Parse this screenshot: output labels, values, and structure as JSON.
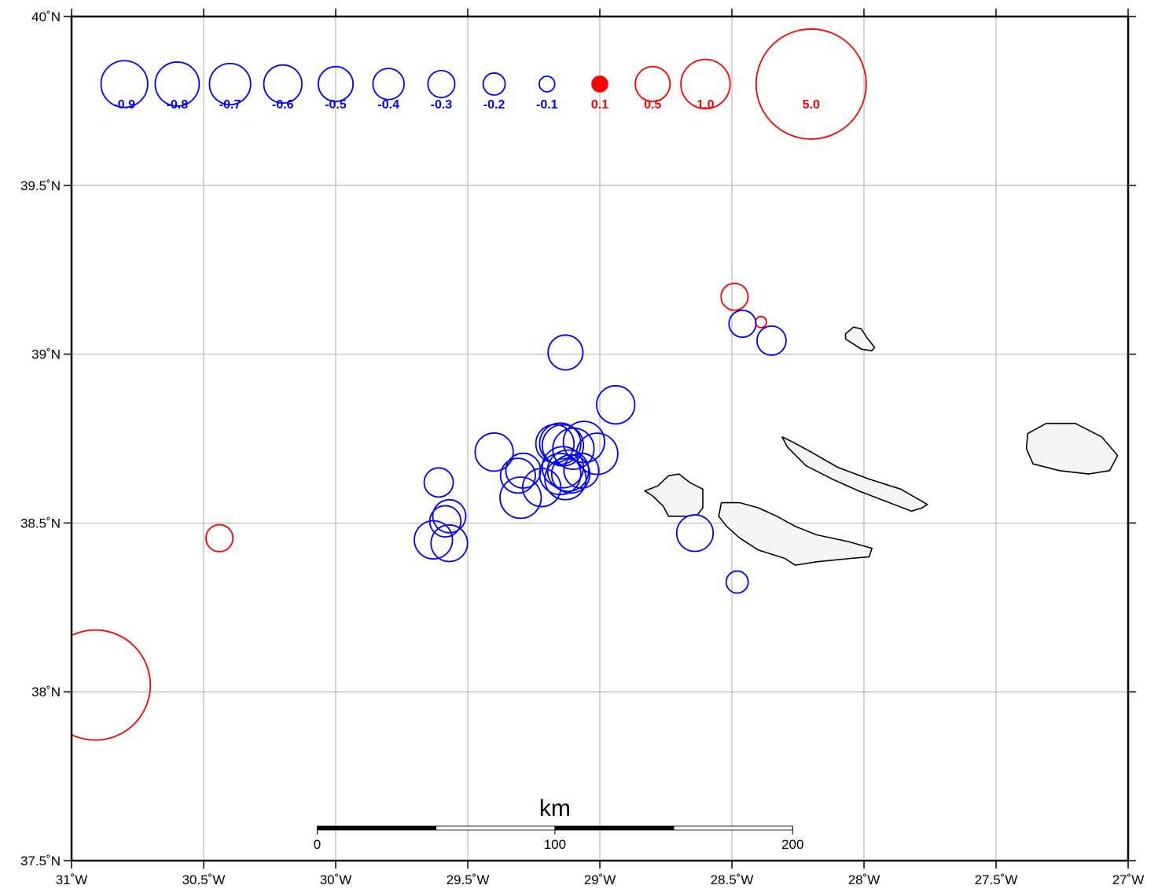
{
  "colors": {
    "negative": "#0000ff",
    "positive": "#ff0000",
    "land_fill": "#f5f5f5",
    "land_stroke": "#000000",
    "grid": "#999999"
  },
  "map": {
    "lon_range": [
      -31.0,
      -27.0
    ],
    "lat_range": [
      37.5,
      40.0
    ],
    "x_ticks": [
      {
        "value": -31.0,
        "label": "31˚W"
      },
      {
        "value": -30.5,
        "label": "30.5˚W"
      },
      {
        "value": -30.0,
        "label": "30˚W"
      },
      {
        "value": -29.5,
        "label": "29.5˚W"
      },
      {
        "value": -29.0,
        "label": "29˚W"
      },
      {
        "value": -28.5,
        "label": "28.5˚W"
      },
      {
        "value": -28.0,
        "label": "28˚W"
      },
      {
        "value": -27.5,
        "label": "27.5˚W"
      },
      {
        "value": -27.0,
        "label": "27˚W"
      }
    ],
    "y_ticks": [
      {
        "value": 37.5,
        "label": "37.5˚N"
      },
      {
        "value": 38.0,
        "label": "38˚N"
      },
      {
        "value": 38.5,
        "label": "38.5˚N"
      },
      {
        "value": 39.0,
        "label": "39˚N"
      },
      {
        "value": 39.5,
        "label": "39.5˚N"
      },
      {
        "value": 40.0,
        "label": "40˚N"
      }
    ],
    "grid": true
  },
  "legend": {
    "lat": 39.8,
    "items": [
      {
        "label": "-0.9",
        "lon": -30.8,
        "value": -0.9
      },
      {
        "label": "-0.8",
        "lon": -30.6,
        "value": -0.8
      },
      {
        "label": "-0.7",
        "lon": -30.4,
        "value": -0.7
      },
      {
        "label": "-0.6",
        "lon": -30.2,
        "value": -0.6
      },
      {
        "label": "-0.5",
        "lon": -30.0,
        "value": -0.5
      },
      {
        "label": "-0.4",
        "lon": -29.8,
        "value": -0.4
      },
      {
        "label": "-0.3",
        "lon": -29.6,
        "value": -0.3
      },
      {
        "label": "-0.2",
        "lon": -29.4,
        "value": -0.2
      },
      {
        "label": "-0.1",
        "lon": -29.2,
        "value": -0.1
      },
      {
        "label": "0.1",
        "lon": -29.0,
        "value": 0.1
      },
      {
        "label": "0.5",
        "lon": -28.8,
        "value": 0.5
      },
      {
        "label": "1.0",
        "lon": -28.6,
        "value": 1.0
      },
      {
        "label": "5.0",
        "lon": -28.2,
        "value": 5.0
      }
    ]
  },
  "events": [
    {
      "lon": -30.91,
      "lat": 38.02,
      "value": 5.0
    },
    {
      "lon": -30.44,
      "lat": 38.455,
      "value": 0.3
    },
    {
      "lon": -28.49,
      "lat": 39.17,
      "value": 0.3
    },
    {
      "lon": -28.39,
      "lat": 39.095,
      "value": 0.05
    },
    {
      "lon": -28.46,
      "lat": 39.09,
      "value": -0.3
    },
    {
      "lon": -28.35,
      "lat": 39.04,
      "value": -0.35
    },
    {
      "lon": -29.13,
      "lat": 39.005,
      "value": -0.5
    },
    {
      "lon": -28.94,
      "lat": 38.85,
      "value": -0.6
    },
    {
      "lon": -29.4,
      "lat": 38.71,
      "value": -0.6
    },
    {
      "lon": -29.17,
      "lat": 38.735,
      "value": -0.6
    },
    {
      "lon": -29.15,
      "lat": 38.735,
      "value": -0.7
    },
    {
      "lon": -29.14,
      "lat": 38.73,
      "value": -0.7
    },
    {
      "lon": -29.1,
      "lat": 38.72,
      "value": -0.7
    },
    {
      "lon": -29.06,
      "lat": 38.74,
      "value": -0.7
    },
    {
      "lon": -29.01,
      "lat": 38.705,
      "value": -0.7
    },
    {
      "lon": -29.14,
      "lat": 38.665,
      "value": -0.7
    },
    {
      "lon": -29.12,
      "lat": 38.655,
      "value": -0.7
    },
    {
      "lon": -29.07,
      "lat": 38.655,
      "value": -0.5
    },
    {
      "lon": -29.15,
      "lat": 38.645,
      "value": -0.7
    },
    {
      "lon": -29.11,
      "lat": 38.645,
      "value": -0.6
    },
    {
      "lon": -29.13,
      "lat": 38.63,
      "value": -0.7
    },
    {
      "lon": -29.22,
      "lat": 38.605,
      "value": -0.6
    },
    {
      "lon": -29.29,
      "lat": 38.655,
      "value": -0.5
    },
    {
      "lon": -29.31,
      "lat": 38.64,
      "value": -0.5
    },
    {
      "lon": -29.3,
      "lat": 38.575,
      "value": -0.7
    },
    {
      "lon": -29.61,
      "lat": 38.62,
      "value": -0.35
    },
    {
      "lon": -29.57,
      "lat": 38.52,
      "value": -0.45
    },
    {
      "lon": -29.585,
      "lat": 38.505,
      "value": -0.4
    },
    {
      "lon": -29.63,
      "lat": 38.45,
      "value": -0.6
    },
    {
      "lon": -29.57,
      "lat": 38.44,
      "value": -0.55
    },
    {
      "lon": -28.64,
      "lat": 38.47,
      "value": -0.55
    },
    {
      "lon": -28.48,
      "lat": 38.325,
      "value": -0.2
    }
  ],
  "islands": [
    {
      "name": "flores-corvo-island",
      "points": [
        [
          -28.07,
          39.06
        ],
        [
          -28.04,
          39.08
        ],
        [
          -28.01,
          39.075
        ],
        [
          -27.99,
          39.05
        ],
        [
          -27.96,
          39.02
        ],
        [
          -27.97,
          39.01
        ],
        [
          -28.01,
          39.015
        ],
        [
          -28.04,
          39.03
        ],
        [
          -28.07,
          39.045
        ]
      ]
    },
    {
      "name": "faial-island",
      "points": [
        [
          -28.83,
          38.595
        ],
        [
          -28.78,
          38.61
        ],
        [
          -28.74,
          38.64
        ],
        [
          -28.7,
          38.645
        ],
        [
          -28.66,
          38.62
        ],
        [
          -28.61,
          38.6
        ],
        [
          -28.61,
          38.545
        ],
        [
          -28.63,
          38.525
        ],
        [
          -28.67,
          38.52
        ],
        [
          -28.74,
          38.52
        ],
        [
          -28.76,
          38.55
        ],
        [
          -28.8,
          38.58
        ]
      ]
    },
    {
      "name": "pico-island",
      "points": [
        [
          -28.54,
          38.56
        ],
        [
          -28.47,
          38.56
        ],
        [
          -28.4,
          38.545
        ],
        [
          -28.33,
          38.52
        ],
        [
          -28.26,
          38.49
        ],
        [
          -28.18,
          38.465
        ],
        [
          -28.06,
          38.445
        ],
        [
          -27.97,
          38.425
        ],
        [
          -27.98,
          38.4
        ],
        [
          -28.05,
          38.395
        ],
        [
          -28.18,
          38.385
        ],
        [
          -28.26,
          38.375
        ],
        [
          -28.3,
          38.395
        ],
        [
          -28.4,
          38.42
        ],
        [
          -28.47,
          38.455
        ],
        [
          -28.52,
          38.49
        ],
        [
          -28.55,
          38.52
        ]
      ]
    },
    {
      "name": "sao-jorge-island",
      "points": [
        [
          -28.31,
          38.755
        ],
        [
          -28.27,
          38.74
        ],
        [
          -28.2,
          38.71
        ],
        [
          -28.1,
          38.665
        ],
        [
          -27.98,
          38.63
        ],
        [
          -27.86,
          38.6
        ],
        [
          -27.76,
          38.555
        ],
        [
          -27.78,
          38.545
        ],
        [
          -27.82,
          38.535
        ],
        [
          -27.92,
          38.565
        ],
        [
          -28.02,
          38.595
        ],
        [
          -28.12,
          38.63
        ],
        [
          -28.22,
          38.67
        ],
        [
          -28.29,
          38.725
        ]
      ]
    },
    {
      "name": "terceira-island",
      "points": [
        [
          -27.38,
          38.765
        ],
        [
          -27.31,
          38.795
        ],
        [
          -27.2,
          38.795
        ],
        [
          -27.1,
          38.755
        ],
        [
          -27.04,
          38.7
        ],
        [
          -27.07,
          38.655
        ],
        [
          -27.15,
          38.645
        ],
        [
          -27.26,
          38.655
        ],
        [
          -27.36,
          38.675
        ],
        [
          -27.385,
          38.72
        ]
      ]
    }
  ],
  "scale_bar": {
    "title": "km",
    "ticks": [
      {
        "value": 0,
        "label": "0"
      },
      {
        "value": 100,
        "label": "100"
      },
      {
        "value": 200,
        "label": "200"
      }
    ],
    "lon_start": -30.07,
    "lon_end": -28.27,
    "lat": 37.6
  }
}
